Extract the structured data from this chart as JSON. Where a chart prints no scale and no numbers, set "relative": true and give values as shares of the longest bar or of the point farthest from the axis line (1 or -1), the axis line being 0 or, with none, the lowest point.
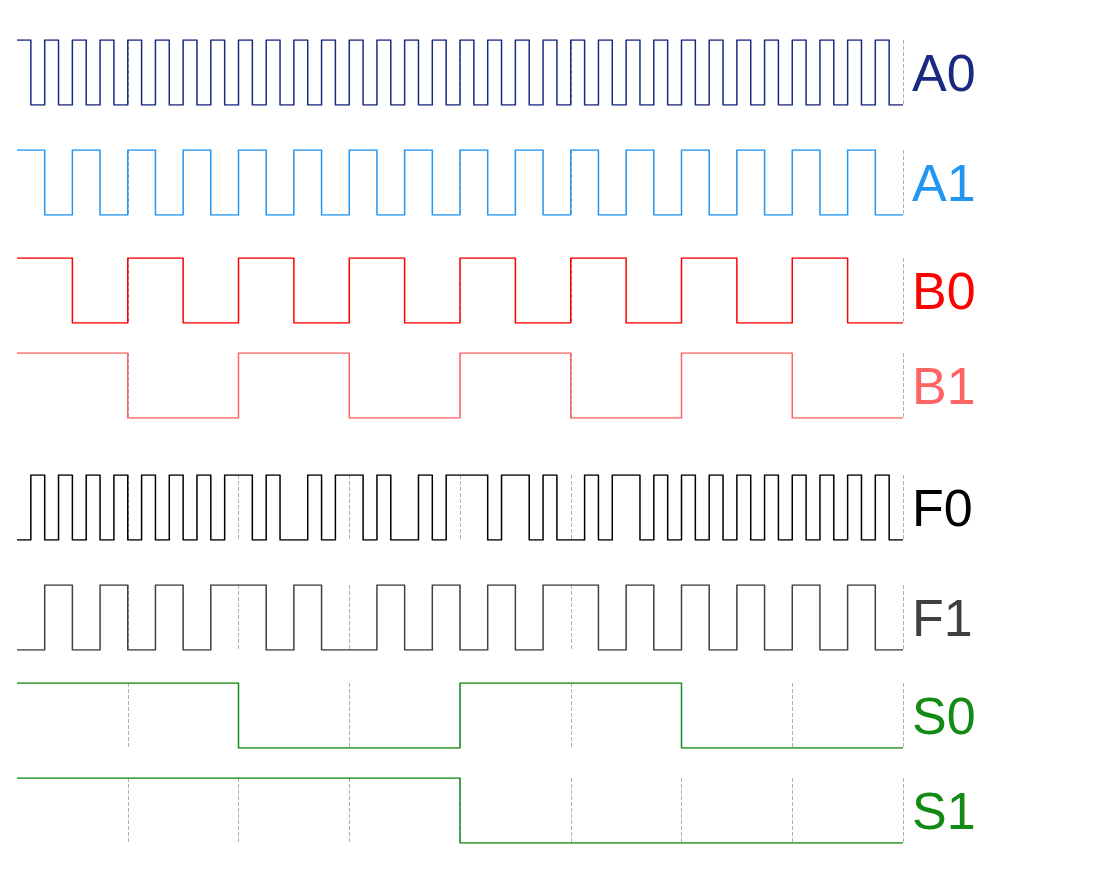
{
  "chart_data": [
    {
      "type": "step",
      "relative": true,
      "grid": "x",
      "marker": "none",
      "categories": [
        null,
        null,
        null,
        null,
        null,
        null,
        null,
        null,
        null,
        null,
        null,
        null,
        null,
        null,
        null,
        null,
        null,
        null,
        null,
        null,
        null,
        null,
        null,
        null,
        null,
        null,
        null,
        null,
        null,
        null,
        null,
        null,
        null,
        null,
        null,
        null,
        null,
        null,
        null,
        null,
        null,
        null,
        null,
        null,
        null,
        null,
        null,
        null,
        null,
        null,
        null,
        null,
        null,
        null,
        null,
        null,
        null,
        null,
        null,
        null,
        null,
        null,
        null,
        null,
        null
      ],
      "series": [
        {
          "name": "A0",
          "color": "#1a2a80",
          "values": [
            1,
            0,
            1,
            0,
            1,
            0,
            1,
            0,
            1,
            0,
            1,
            0,
            1,
            0,
            1,
            0,
            1,
            0,
            1,
            0,
            1,
            0,
            1,
            0,
            1,
            0,
            1,
            0,
            1,
            0,
            1,
            0,
            1,
            0,
            1,
            0,
            1,
            0,
            1,
            0,
            1,
            0,
            1,
            0,
            1,
            0,
            1,
            0,
            1,
            0,
            1,
            0,
            1,
            0,
            1,
            0,
            1,
            0,
            1,
            0,
            1,
            0,
            1,
            0,
            0
          ]
        }
      ]
    },
    {
      "type": "step",
      "relative": true,
      "grid": "x",
      "marker": "none",
      "categories": [
        null,
        null,
        null,
        null,
        null,
        null,
        null,
        null,
        null,
        null,
        null,
        null,
        null,
        null,
        null,
        null,
        null,
        null,
        null,
        null,
        null,
        null,
        null,
        null,
        null,
        null,
        null,
        null,
        null,
        null,
        null,
        null,
        null,
        null,
        null,
        null,
        null,
        null,
        null,
        null,
        null,
        null,
        null,
        null,
        null,
        null,
        null,
        null,
        null,
        null,
        null,
        null,
        null,
        null,
        null,
        null,
        null,
        null,
        null,
        null,
        null,
        null,
        null,
        null,
        null
      ],
      "series": [
        {
          "name": "A1",
          "color": "#2196f3",
          "values": [
            1,
            1,
            0,
            0,
            1,
            1,
            0,
            0,
            1,
            1,
            0,
            0,
            1,
            1,
            0,
            0,
            1,
            1,
            0,
            0,
            1,
            1,
            0,
            0,
            1,
            1,
            0,
            0,
            1,
            1,
            0,
            0,
            1,
            1,
            0,
            0,
            1,
            1,
            0,
            0,
            1,
            1,
            0,
            0,
            1,
            1,
            0,
            0,
            1,
            1,
            0,
            0,
            1,
            1,
            0,
            0,
            1,
            1,
            0,
            0,
            1,
            1,
            0,
            0,
            0
          ]
        }
      ]
    },
    {
      "type": "step",
      "relative": true,
      "grid": "x",
      "marker": "none",
      "categories": [
        null,
        null,
        null,
        null,
        null,
        null,
        null,
        null,
        null,
        null,
        null,
        null,
        null,
        null,
        null,
        null,
        null,
        null,
        null,
        null,
        null,
        null,
        null,
        null,
        null,
        null,
        null,
        null,
        null,
        null,
        null,
        null,
        null,
        null,
        null,
        null,
        null,
        null,
        null,
        null,
        null,
        null,
        null,
        null,
        null,
        null,
        null,
        null,
        null,
        null,
        null,
        null,
        null,
        null,
        null,
        null,
        null,
        null,
        null,
        null,
        null,
        null,
        null,
        null,
        null
      ],
      "series": [
        {
          "name": "B0",
          "color": "#ff0000",
          "values": [
            1,
            1,
            1,
            1,
            0,
            0,
            0,
            0,
            1,
            1,
            1,
            1,
            0,
            0,
            0,
            0,
            1,
            1,
            1,
            1,
            0,
            0,
            0,
            0,
            1,
            1,
            1,
            1,
            0,
            0,
            0,
            0,
            1,
            1,
            1,
            1,
            0,
            0,
            0,
            0,
            1,
            1,
            1,
            1,
            0,
            0,
            0,
            0,
            1,
            1,
            1,
            1,
            0,
            0,
            0,
            0,
            1,
            1,
            1,
            1,
            0,
            0,
            0,
            0,
            0
          ]
        }
      ]
    },
    {
      "type": "step",
      "relative": true,
      "grid": "x",
      "marker": "none",
      "categories": [
        null,
        null,
        null,
        null,
        null,
        null,
        null,
        null,
        null,
        null,
        null,
        null,
        null,
        null,
        null,
        null,
        null,
        null,
        null,
        null,
        null,
        null,
        null,
        null,
        null,
        null,
        null,
        null,
        null,
        null,
        null,
        null,
        null,
        null,
        null,
        null,
        null,
        null,
        null,
        null,
        null,
        null,
        null,
        null,
        null,
        null,
        null,
        null,
        null,
        null,
        null,
        null,
        null,
        null,
        null,
        null,
        null,
        null,
        null,
        null,
        null,
        null,
        null,
        null,
        null
      ],
      "series": [
        {
          "name": "B1",
          "color": "#ff6464",
          "values": [
            1,
            1,
            1,
            1,
            1,
            1,
            1,
            1,
            0,
            0,
            0,
            0,
            0,
            0,
            0,
            0,
            1,
            1,
            1,
            1,
            1,
            1,
            1,
            1,
            0,
            0,
            0,
            0,
            0,
            0,
            0,
            0,
            1,
            1,
            1,
            1,
            1,
            1,
            1,
            1,
            0,
            0,
            0,
            0,
            0,
            0,
            0,
            0,
            1,
            1,
            1,
            1,
            1,
            1,
            1,
            1,
            0,
            0,
            0,
            0,
            0,
            0,
            0,
            0,
            0
          ]
        }
      ]
    },
    {
      "type": "step",
      "relative": true,
      "grid": "x",
      "marker": "none",
      "categories": [
        null,
        null,
        null,
        null,
        null,
        null,
        null,
        null,
        null,
        null,
        null,
        null,
        null,
        null,
        null,
        null,
        null,
        null,
        null,
        null,
        null,
        null,
        null,
        null,
        null,
        null,
        null,
        null,
        null,
        null,
        null,
        null,
        null,
        null,
        null,
        null,
        null,
        null,
        null,
        null,
        null,
        null,
        null,
        null,
        null,
        null,
        null,
        null,
        null,
        null,
        null,
        null,
        null,
        null,
        null,
        null,
        null,
        null,
        null,
        null,
        null,
        null,
        null,
        null,
        null
      ],
      "series": [
        {
          "name": "F0",
          "color": "#000000",
          "values": [
            0,
            1,
            0,
            1,
            0,
            1,
            0,
            1,
            0,
            1,
            0,
            1,
            0,
            1,
            0,
            1,
            1,
            0,
            1,
            0,
            0,
            1,
            0,
            1,
            1,
            0,
            1,
            0,
            0,
            1,
            0,
            1,
            1,
            1,
            0,
            1,
            1,
            0,
            1,
            0,
            0,
            1,
            0,
            1,
            1,
            0,
            1,
            0,
            1,
            0,
            1,
            0,
            1,
            0,
            1,
            0,
            1,
            0,
            1,
            0,
            1,
            0,
            1,
            0,
            0
          ]
        }
      ]
    },
    {
      "type": "step",
      "relative": true,
      "grid": "x",
      "marker": "none",
      "categories": [
        null,
        null,
        null,
        null,
        null,
        null,
        null,
        null,
        null,
        null,
        null,
        null,
        null,
        null,
        null,
        null,
        null,
        null,
        null,
        null,
        null,
        null,
        null,
        null,
        null,
        null,
        null,
        null,
        null,
        null,
        null,
        null,
        null,
        null,
        null,
        null,
        null,
        null,
        null,
        null,
        null,
        null,
        null,
        null,
        null,
        null,
        null,
        null,
        null,
        null,
        null,
        null,
        null,
        null,
        null,
        null,
        null,
        null,
        null,
        null,
        null,
        null,
        null,
        null,
        null
      ],
      "series": [
        {
          "name": "F1",
          "color": "#404040",
          "values": [
            0,
            0,
            1,
            1,
            0,
            0,
            1,
            1,
            0,
            0,
            1,
            1,
            0,
            0,
            1,
            1,
            1,
            1,
            0,
            0,
            1,
            1,
            0,
            0,
            0,
            0,
            1,
            1,
            0,
            0,
            1,
            1,
            0,
            0,
            1,
            1,
            0,
            0,
            1,
            1,
            1,
            1,
            0,
            0,
            1,
            1,
            0,
            0,
            1,
            1,
            0,
            0,
            1,
            1,
            0,
            0,
            1,
            1,
            0,
            0,
            1,
            1,
            0,
            0,
            0
          ]
        }
      ]
    },
    {
      "type": "step",
      "relative": true,
      "grid": "x",
      "marker": "none",
      "categories": [
        null,
        null,
        null,
        null,
        null,
        null,
        null,
        null,
        null,
        null,
        null,
        null,
        null,
        null,
        null,
        null,
        null,
        null,
        null,
        null,
        null,
        null,
        null,
        null,
        null,
        null,
        null,
        null,
        null,
        null,
        null,
        null,
        null,
        null,
        null,
        null,
        null,
        null,
        null,
        null,
        null,
        null,
        null,
        null,
        null,
        null,
        null,
        null,
        null,
        null,
        null,
        null,
        null,
        null,
        null,
        null,
        null,
        null,
        null,
        null,
        null,
        null,
        null,
        null,
        null
      ],
      "series": [
        {
          "name": "S0",
          "color": "#138a13",
          "values": [
            1,
            1,
            1,
            1,
            1,
            1,
            1,
            1,
            1,
            1,
            1,
            1,
            1,
            1,
            1,
            1,
            0,
            0,
            0,
            0,
            0,
            0,
            0,
            0,
            0,
            0,
            0,
            0,
            0,
            0,
            0,
            0,
            1,
            1,
            1,
            1,
            1,
            1,
            1,
            1,
            1,
            1,
            1,
            1,
            1,
            1,
            1,
            1,
            0,
            0,
            0,
            0,
            0,
            0,
            0,
            0,
            0,
            0,
            0,
            0,
            0,
            0,
            0,
            0,
            0
          ]
        }
      ]
    },
    {
      "type": "step",
      "relative": true,
      "grid": "x",
      "marker": "none",
      "categories": [
        null,
        null,
        null,
        null,
        null,
        null,
        null,
        null,
        null,
        null,
        null,
        null,
        null,
        null,
        null,
        null,
        null,
        null,
        null,
        null,
        null,
        null,
        null,
        null,
        null,
        null,
        null,
        null,
        null,
        null,
        null,
        null,
        null,
        null,
        null,
        null,
        null,
        null,
        null,
        null,
        null,
        null,
        null,
        null,
        null,
        null,
        null,
        null,
        null,
        null,
        null,
        null,
        null,
        null,
        null,
        null,
        null,
        null,
        null,
        null,
        null,
        null,
        null,
        null,
        null
      ],
      "series": [
        {
          "name": "S1",
          "color": "#138a13",
          "values": [
            1,
            1,
            1,
            1,
            1,
            1,
            1,
            1,
            1,
            1,
            1,
            1,
            1,
            1,
            1,
            1,
            1,
            1,
            1,
            1,
            1,
            1,
            1,
            1,
            1,
            1,
            1,
            1,
            1,
            1,
            1,
            1,
            0,
            0,
            0,
            0,
            0,
            0,
            0,
            0,
            0,
            0,
            0,
            0,
            0,
            0,
            0,
            0,
            0,
            0,
            0,
            0,
            0,
            0,
            0,
            0,
            0,
            0,
            0,
            0,
            0,
            0,
            0,
            0,
            0
          ]
        }
      ]
    }
  ]
}
